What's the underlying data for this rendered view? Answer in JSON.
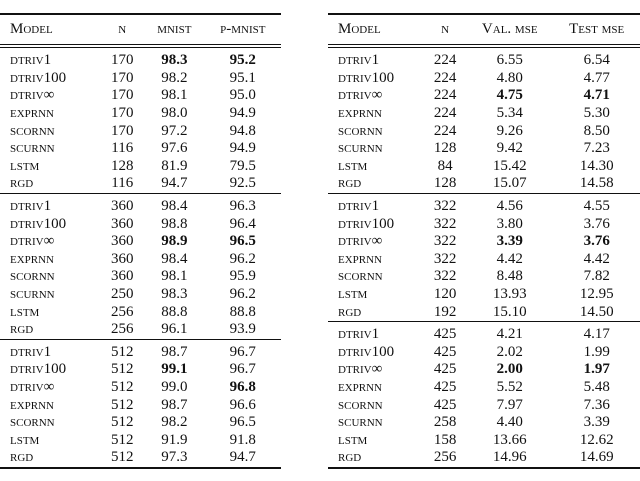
{
  "tables": [
    {
      "headers": [
        "Model",
        "n",
        "mnist",
        "p-mnist"
      ],
      "groups": [
        [
          [
            "dtriv1",
            "170",
            "98.3",
            "95.2",
            [
              2,
              3
            ]
          ],
          [
            "dtriv100",
            "170",
            "98.2",
            "95.1",
            []
          ],
          [
            "dtriv∞",
            "170",
            "98.1",
            "95.0",
            []
          ],
          [
            "exprnn",
            "170",
            "98.0",
            "94.9",
            []
          ],
          [
            "scornn",
            "170",
            "97.2",
            "94.8",
            []
          ],
          [
            "scurnn",
            "116",
            "97.6",
            "94.9",
            []
          ],
          [
            "lstm",
            "128",
            "81.9",
            "79.5",
            []
          ],
          [
            "rgd",
            "116",
            "94.7",
            "92.5",
            []
          ]
        ],
        [
          [
            "dtriv1",
            "360",
            "98.4",
            "96.3",
            []
          ],
          [
            "dtriv100",
            "360",
            "98.8",
            "96.4",
            []
          ],
          [
            "dtriv∞",
            "360",
            "98.9",
            "96.5",
            [
              2,
              3
            ]
          ],
          [
            "exprnn",
            "360",
            "98.4",
            "96.2",
            []
          ],
          [
            "scornn",
            "360",
            "98.1",
            "95.9",
            []
          ],
          [
            "scurnn",
            "250",
            "98.3",
            "96.2",
            []
          ],
          [
            "lstm",
            "256",
            "88.8",
            "88.8",
            []
          ],
          [
            "rgd",
            "256",
            "96.1",
            "93.9",
            []
          ]
        ],
        [
          [
            "dtriv1",
            "512",
            "98.7",
            "96.7",
            []
          ],
          [
            "dtriv100",
            "512",
            "99.1",
            "96.7",
            [
              2
            ]
          ],
          [
            "dtriv∞",
            "512",
            "99.0",
            "96.8",
            [
              3
            ]
          ],
          [
            "exprnn",
            "512",
            "98.7",
            "96.6",
            []
          ],
          [
            "scornn",
            "512",
            "98.2",
            "96.5",
            []
          ],
          [
            "lstm",
            "512",
            "91.9",
            "91.8",
            []
          ],
          [
            "rgd",
            "512",
            "97.3",
            "94.7",
            []
          ]
        ]
      ]
    },
    {
      "headers": [
        "Model",
        "n",
        "Val. mse",
        "Test mse"
      ],
      "groups": [
        [
          [
            "dtriv1",
            "224",
            "6.55",
            "6.54",
            []
          ],
          [
            "dtriv100",
            "224",
            "4.80",
            "4.77",
            []
          ],
          [
            "dtriv∞",
            "224",
            "4.75",
            "4.71",
            [
              2,
              3
            ]
          ],
          [
            "exprnn",
            "224",
            "5.34",
            "5.30",
            []
          ],
          [
            "scornn",
            "224",
            "9.26",
            "8.50",
            []
          ],
          [
            "scurnn",
            "128",
            "9.42",
            "7.23",
            []
          ],
          [
            "lstm",
            "84",
            "15.42",
            "14.30",
            []
          ],
          [
            "rgd",
            "128",
            "15.07",
            "14.58",
            []
          ]
        ],
        [
          [
            "dtriv1",
            "322",
            "4.56",
            "4.55",
            []
          ],
          [
            "dtriv100",
            "322",
            "3.80",
            "3.76",
            []
          ],
          [
            "dtriv∞",
            "322",
            "3.39",
            "3.76",
            [
              2,
              3
            ]
          ],
          [
            "exprnn",
            "322",
            "4.42",
            "4.42",
            []
          ],
          [
            "scornn",
            "322",
            "8.48",
            "7.82",
            []
          ],
          [
            "lstm",
            "120",
            "13.93",
            "12.95",
            []
          ],
          [
            "rgd",
            "192",
            "15.10",
            "14.50",
            []
          ]
        ],
        [
          [
            "dtriv1",
            "425",
            "4.21",
            "4.17",
            []
          ],
          [
            "dtriv100",
            "425",
            "2.02",
            "1.99",
            []
          ],
          [
            "dtriv∞",
            "425",
            "2.00",
            "1.97",
            [
              2,
              3
            ]
          ],
          [
            "exprnn",
            "425",
            "5.52",
            "5.48",
            []
          ],
          [
            "scornn",
            "425",
            "7.97",
            "7.36",
            []
          ],
          [
            "scurnn",
            "258",
            "4.40",
            "3.39",
            []
          ],
          [
            "lstm",
            "158",
            "13.66",
            "12.62",
            []
          ],
          [
            "rgd",
            "256",
            "14.96",
            "14.69",
            []
          ]
        ]
      ]
    }
  ]
}
